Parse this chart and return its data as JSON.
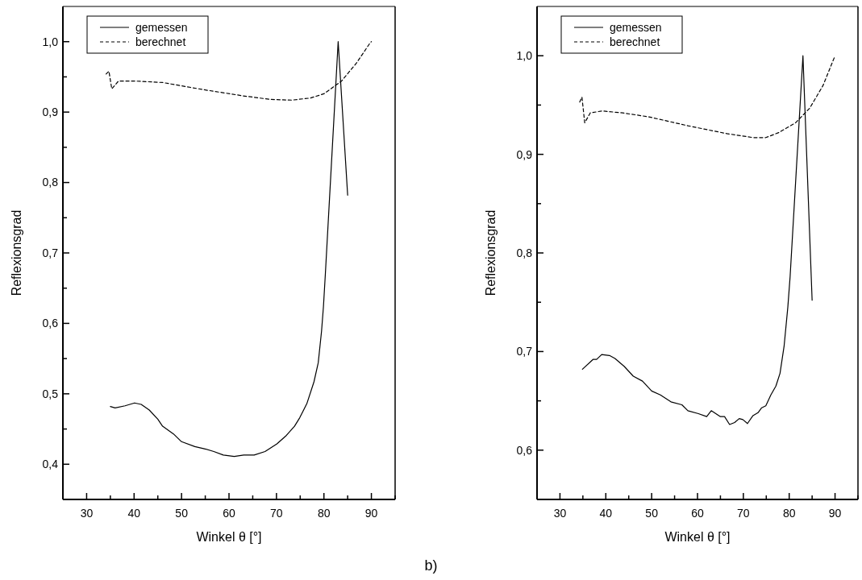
{
  "chart_data": [
    {
      "type": "line",
      "xlabel": "Winkel θ [°]",
      "ylabel": "Reflexionsgrad",
      "xlim": [
        25,
        95
      ],
      "ylim": [
        0.35,
        1.05
      ],
      "xticks": [
        {
          "value": 25,
          "label": null
        },
        30,
        {
          "value": 35,
          "label": null
        },
        40,
        {
          "value": 45,
          "label": null
        },
        50,
        {
          "value": 55,
          "label": null
        },
        60,
        {
          "value": 65,
          "label": null
        },
        70,
        {
          "value": 75,
          "label": null
        },
        80,
        {
          "value": 85,
          "label": null
        },
        90,
        {
          "value": 95,
          "label": null
        }
      ],
      "yticks": [
        {
          "value": 0.4,
          "label": "0,4"
        },
        {
          "value": 0.45,
          "label": null
        },
        {
          "value": 0.5,
          "label": "0,5"
        },
        {
          "value": 0.55,
          "label": null
        },
        {
          "value": 0.6,
          "label": "0,6"
        },
        {
          "value": 0.65,
          "label": null
        },
        {
          "value": 0.7,
          "label": "0,7"
        },
        {
          "value": 0.75,
          "label": null
        },
        {
          "value": 0.8,
          "label": "0,8"
        },
        {
          "value": 0.85,
          "label": null
        },
        {
          "value": 0.9,
          "label": "0,9"
        },
        {
          "value": 0.95,
          "label": null
        },
        {
          "value": 1.0,
          "label": "1,0"
        }
      ],
      "legend": "top left",
      "grid": false,
      "marker": "none",
      "series": [
        {
          "name": "gemessen",
          "color": "#000000",
          "line_style": "solid",
          "x": [
            35.0,
            36.0,
            38.1,
            40.1,
            41.5,
            43.2,
            45.0,
            46.0,
            48.3,
            50.0,
            52.8,
            54.8,
            56.8,
            58.8,
            61.1,
            63.1,
            65.3,
            67.6,
            70.1,
            72.1,
            73.8,
            74.9,
            76.4,
            77.9,
            78.8,
            79.5,
            79.9,
            80.3,
            83.0,
            85.0
          ],
          "values": [
            0.482,
            0.48,
            0.483,
            0.487,
            0.485,
            0.477,
            0.464,
            0.454,
            0.443,
            0.432,
            0.425,
            0.422,
            0.418,
            0.413,
            0.411,
            0.413,
            0.413,
            0.418,
            0.429,
            0.441,
            0.454,
            0.466,
            0.486,
            0.517,
            0.544,
            0.589,
            0.624,
            0.67,
            1.0,
            0.782
          ]
        },
        {
          "name": "berechnet",
          "color": "#000000",
          "line_style": "dashed",
          "x": [
            34.1,
            34.7,
            35.3,
            36.7,
            40.4,
            46.0,
            54.5,
            63.0,
            68.7,
            73.2,
            77.2,
            80.0,
            83.7,
            86.9,
            89.7,
            90.0
          ],
          "values": [
            0.954,
            0.958,
            0.933,
            0.944,
            0.944,
            0.942,
            0.932,
            0.923,
            0.918,
            0.917,
            0.92,
            0.926,
            0.944,
            0.97,
            0.998,
            1.0
          ]
        }
      ]
    },
    {
      "type": "line",
      "xlabel": "Winkel θ [°]",
      "ylabel": "Reflexionsgrad",
      "xlim": [
        25,
        95
      ],
      "ylim": [
        0.55,
        1.05
      ],
      "xticks": [
        {
          "value": 25,
          "label": null
        },
        30,
        {
          "value": 35,
          "label": null
        },
        40,
        {
          "value": 45,
          "label": null
        },
        50,
        {
          "value": 55,
          "label": null
        },
        60,
        {
          "value": 65,
          "label": null
        },
        70,
        {
          "value": 75,
          "label": null
        },
        80,
        {
          "value": 85,
          "label": null
        },
        90,
        {
          "value": 95,
          "label": null
        }
      ],
      "yticks": [
        {
          "value": 0.6,
          "label": "0,6"
        },
        {
          "value": 0.65,
          "label": null
        },
        {
          "value": 0.7,
          "label": "0,7"
        },
        {
          "value": 0.75,
          "label": null
        },
        {
          "value": 0.8,
          "label": "0,8"
        },
        {
          "value": 0.85,
          "label": null
        },
        {
          "value": 0.9,
          "label": "0,9"
        },
        {
          "value": 0.95,
          "label": null
        },
        {
          "value": 1.0,
          "label": "1,0"
        }
      ],
      "legend": "top left",
      "grid": false,
      "marker": "none",
      "annotations": [
        "b)"
      ],
      "series": [
        {
          "name": "gemessen",
          "color": "#000000",
          "line_style": "solid",
          "x": [
            34.9,
            37.2,
            38.0,
            39.1,
            40.8,
            42.0,
            44.0,
            46.0,
            48.0,
            50.0,
            51.9,
            54.2,
            56.6,
            57.9,
            60.2,
            62.0,
            63.0,
            65.0,
            65.9,
            67.0,
            68.1,
            69.1,
            69.9,
            70.9,
            72.1,
            73.2,
            74.0,
            74.9,
            76.0,
            77.1,
            78.0,
            78.9,
            79.7,
            80.2,
            83.0,
            85.0
          ],
          "values": [
            0.682,
            0.692,
            0.692,
            0.697,
            0.696,
            0.693,
            0.685,
            0.675,
            0.67,
            0.66,
            0.656,
            0.649,
            0.646,
            0.64,
            0.637,
            0.634,
            0.64,
            0.634,
            0.634,
            0.626,
            0.628,
            0.632,
            0.631,
            0.627,
            0.635,
            0.638,
            0.643,
            0.645,
            0.656,
            0.665,
            0.678,
            0.706,
            0.745,
            0.776,
            1.0,
            0.752
          ]
        },
        {
          "name": "berechnet",
          "color": "#000000",
          "line_style": "dashed",
          "x": [
            34.3,
            34.8,
            35.4,
            36.6,
            39.2,
            43.7,
            49.4,
            57.9,
            66.4,
            72.1,
            74.9,
            77.7,
            81.4,
            84.5,
            87.4,
            90.0
          ],
          "values": [
            0.953,
            0.958,
            0.932,
            0.942,
            0.944,
            0.942,
            0.938,
            0.929,
            0.921,
            0.917,
            0.917,
            0.922,
            0.932,
            0.947,
            0.97,
            1.0
          ]
        }
      ]
    }
  ]
}
